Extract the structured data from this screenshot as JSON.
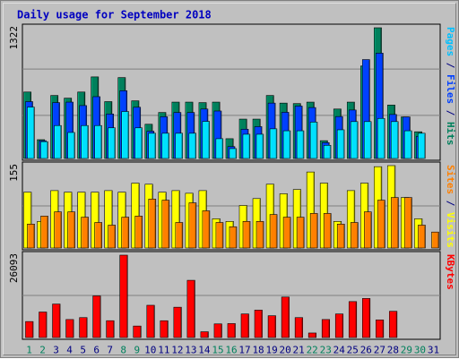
{
  "chart_data": {
    "type": "bar",
    "title": "Daily usage for September 2018",
    "days": [
      "1",
      "2",
      "3",
      "4",
      "5",
      "6",
      "7",
      "8",
      "9",
      "10",
      "11",
      "12",
      "13",
      "14",
      "15",
      "16",
      "17",
      "18",
      "19",
      "20",
      "21",
      "22",
      "23",
      "24",
      "25",
      "26",
      "27",
      "28",
      "29",
      "30",
      "31"
    ],
    "weekend_days": [
      "1",
      "2",
      "8",
      "9",
      "15",
      "16",
      "22",
      "23",
      "29",
      "30"
    ],
    "colors": {
      "hits": "#00805c",
      "files": "#0040ff",
      "pages": "#00e0ff",
      "visits": "#ffff00",
      "sites": "#ff8000",
      "kbytes": "#ff0000",
      "weekend_label": "#00805c",
      "weekday_label": "#000080",
      "title": "#0000c0"
    },
    "panels": [
      {
        "id": "hits",
        "scale_label": "1322",
        "ymax": 1322,
        "axis_label_parts": [
          {
            "text": "Pages",
            "color": "#00c0ff"
          },
          {
            "text": " / ",
            "color": "#000080"
          },
          {
            "text": "Files",
            "color": "#0040ff"
          },
          {
            "text": " / ",
            "color": "#000080"
          },
          {
            "text": "Hits",
            "color": "#00805c"
          }
        ],
        "series": [
          {
            "name": "Hits",
            "color": "#00805c",
            "values": [
              672,
              190,
              637,
              610,
              672,
              825,
              575,
              818,
              583,
              346,
              465,
              570,
              570,
              565,
              570,
              200,
              398,
              398,
              637,
              560,
              555,
              570,
              180,
              500,
              570,
              935,
              1322,
              540,
              420,
              270,
              0
            ]
          },
          {
            "name": "Files",
            "color": "#0040ff",
            "values": [
              575,
              180,
              565,
              570,
              535,
              625,
              450,
              685,
              518,
              276,
              422,
              465,
              465,
              500,
              480,
              120,
              296,
              322,
              560,
              467,
              530,
              515,
              160,
              424,
              490,
              1000,
              1065,
              445,
              420,
              224,
              0
            ]
          },
          {
            "name": "Pages",
            "color": "#00e0ff",
            "values": [
              520,
              170,
              333,
              263,
              333,
              333,
              310,
              475,
              310,
              255,
              255,
              255,
              255,
              375,
              200,
              100,
              245,
              245,
              300,
              280,
              280,
              368,
              133,
              290,
              373,
              373,
              405,
              373,
              280,
              255,
              0
            ]
          }
        ]
      },
      {
        "id": "visits",
        "scale_label": "155",
        "ymax": 155,
        "axis_label_parts": [
          {
            "text": "Sites",
            "color": "#ff8000"
          },
          {
            "text": " / ",
            "color": "#000080"
          },
          {
            "text": "Visits",
            "color": "#ffff00"
          }
        ],
        "series": [
          {
            "name": "Visits",
            "color": "#ffff00",
            "values": [
              105,
              50,
              108,
              105,
              105,
              105,
              108,
              105,
              122,
              120,
              105,
              108,
              103,
              108,
              55,
              50,
              80,
              93,
              120,
              102,
              110,
              143,
              122,
              50,
              108,
              122,
              153,
              155,
              95,
              55,
              0
            ]
          },
          {
            "name": "Sites",
            "color": "#ff8000",
            "values": [
              45,
              60,
              68,
              68,
              58,
              48,
              43,
              58,
              60,
              92,
              90,
              48,
              85,
              70,
              48,
              40,
              50,
              50,
              63,
              58,
              58,
              65,
              65,
              45,
              48,
              68,
              90,
              95,
              95,
              43,
              30
            ]
          }
        ]
      },
      {
        "id": "kbytes",
        "scale_label": "26093",
        "ymax": 26093,
        "axis_label_parts": [
          {
            "text": "KBytes",
            "color": "#ff0000"
          }
        ],
        "series": [
          {
            "name": "KBytes",
            "color": "#ff0000",
            "values": [
              5060,
              8075,
              10600,
              5700,
              6310,
              13185,
              5330,
              26093,
              3640,
              10215,
              5320,
              9600,
              18125,
              1820,
              4320,
              4410,
              7460,
              8670,
              6900,
              12820,
              6310,
              1430,
              5700,
              7460,
              11380,
              12370,
              5580,
              8305,
              0,
              0,
              0
            ]
          }
        ]
      }
    ]
  }
}
